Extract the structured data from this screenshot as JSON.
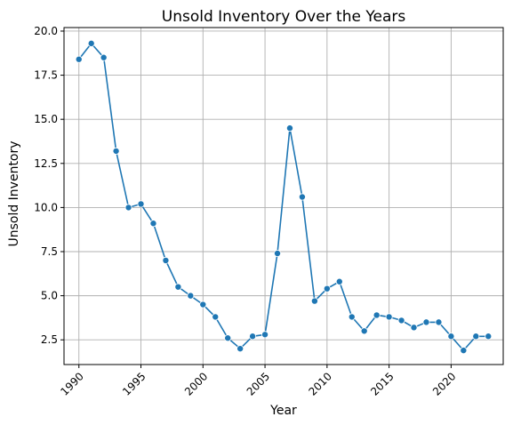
{
  "chart_data": {
    "type": "line",
    "title": "Unsold Inventory Over the Years",
    "xlabel": "Year",
    "ylabel": "Unsold Inventory",
    "xlim": [
      1988.8,
      2024.2
    ],
    "ylim": [
      1.1,
      20.2
    ],
    "x_ticks": [
      1990,
      1995,
      2000,
      2005,
      2010,
      2015,
      2020
    ],
    "y_ticks": [
      2.5,
      5.0,
      7.5,
      10.0,
      12.5,
      15.0,
      17.5,
      20.0
    ],
    "x_tick_labels": [
      "1990",
      "1995",
      "2000",
      "2005",
      "2010",
      "2015",
      "2020"
    ],
    "y_tick_labels": [
      "2.5",
      "5.0",
      "7.5",
      "10.0",
      "12.5",
      "15.0",
      "17.5",
      "20.0"
    ],
    "grid": true,
    "line_color": "#1f77b4",
    "marker": "circle",
    "series": [
      {
        "x": [
          1990,
          1991,
          1992,
          1993,
          1994,
          1995,
          1996,
          1997,
          1998,
          1999,
          2000,
          2001,
          2002,
          2003,
          2004,
          2005,
          2006,
          2007,
          2008,
          2009,
          2010,
          2011,
          2012,
          2013,
          2014,
          2015,
          2016,
          2017,
          2018,
          2019,
          2020,
          2021,
          2022,
          2023
        ],
        "values": [
          18.4,
          19.3,
          18.5,
          13.2,
          10.0,
          10.2,
          9.1,
          7.0,
          5.5,
          5.0,
          4.5,
          3.8,
          2.6,
          2.0,
          2.7,
          2.8,
          7.4,
          14.5,
          10.6,
          4.7,
          5.4,
          5.8,
          3.8,
          3.0,
          3.9,
          3.8,
          3.6,
          3.2,
          3.5,
          3.5,
          2.7,
          1.9,
          2.7,
          2.7
        ]
      }
    ]
  }
}
